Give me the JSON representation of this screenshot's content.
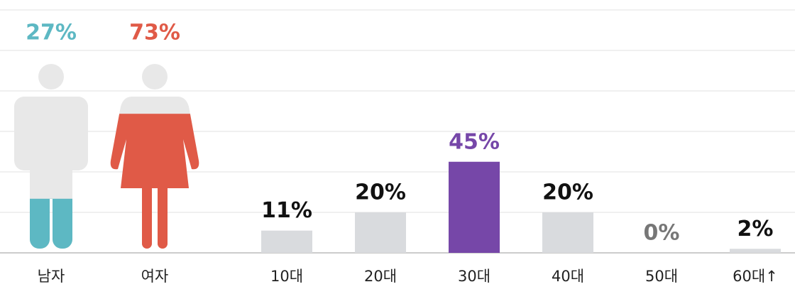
{
  "chart_data": [
    {
      "type": "pictogram",
      "categories": [
        "남자",
        "여자"
      ],
      "values": [
        27,
        73
      ],
      "value_labels": [
        "27%",
        "73%"
      ],
      "colors": [
        "#5db8c3",
        "#e05a47"
      ],
      "base_color": "#e8e8e8"
    },
    {
      "type": "bar",
      "categories": [
        "10대",
        "20대",
        "30대",
        "40대",
        "50대",
        "60대↑"
      ],
      "values": [
        11,
        20,
        45,
        20,
        0,
        2
      ],
      "value_labels": [
        "11%",
        "20%",
        "45%",
        "20%",
        "0%",
        "2%"
      ],
      "colors": [
        "#d9dbde",
        "#d9dbde",
        "#7647a8",
        "#d9dbde",
        "#d9dbde",
        "#d9dbde"
      ],
      "label_colors": [
        "#111111",
        "#111111",
        "#7647a8",
        "#111111",
        "#777777",
        "#111111"
      ],
      "ylim": [
        0,
        120
      ],
      "grid": true
    }
  ]
}
